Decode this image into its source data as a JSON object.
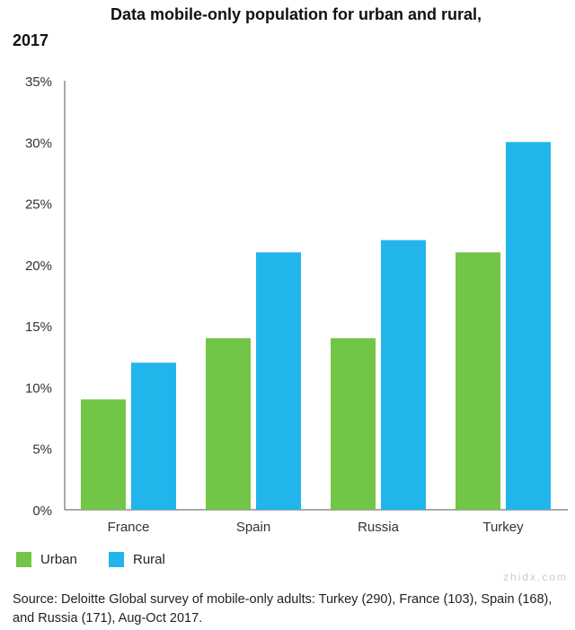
{
  "chart_data": {
    "type": "bar",
    "title": "Data mobile-only population for urban and rural,",
    "title_line2": "2017",
    "categories": [
      "France",
      "Spain",
      "Russia",
      "Turkey"
    ],
    "series": [
      {
        "name": "Urban",
        "values": [
          9,
          14,
          14,
          21
        ],
        "color": "#72c546"
      },
      {
        "name": "Rural",
        "values": [
          12,
          21,
          22,
          30
        ],
        "color": "#22b5ec"
      }
    ],
    "ylim": [
      0,
      35
    ],
    "yticks": [
      "0%",
      "5%",
      "10%",
      "15%",
      "20%",
      "25%",
      "30%",
      "35%"
    ],
    "grid": false,
    "legend": "bottom-left"
  },
  "source": "Source: Deloitte Global survey of mobile-only adults: Turkey (290), France (103), Spain (168), and Russia (171), Aug-Oct 2017.",
  "watermark": "zhidx.com"
}
